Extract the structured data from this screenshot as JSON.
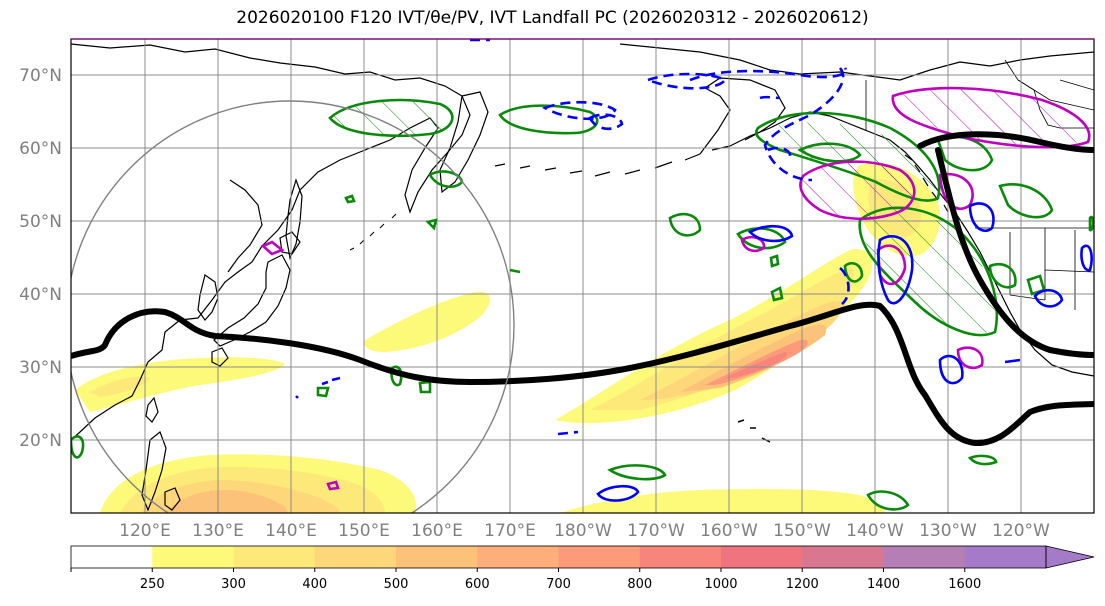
{
  "title": "2026020100 F120 IVT/θe/PV, IVT Landfall PC (2026020312 - 2026020612)",
  "latitude_labels": [
    "70°N",
    "60°N",
    "50°N",
    "40°N",
    "30°N",
    "20°N"
  ],
  "longitude_labels": [
    "120°E",
    "130°E",
    "140°E",
    "150°E",
    "160°E",
    "170°E",
    "180°W",
    "170°W",
    "160°W",
    "150°W",
    "140°W",
    "130°W",
    "120°W"
  ],
  "colorbar": {
    "ticks": [
      "250",
      "300",
      "400",
      "500",
      "600",
      "700",
      "800",
      "1000",
      "1200",
      "1400",
      "1600"
    ],
    "colors": [
      "#ffffff",
      "#fdfa7a",
      "#fde97a",
      "#fdd77a",
      "#fdc27a",
      "#fdae7a",
      "#fc9a7a",
      "#f8857b",
      "#ef7480",
      "#d97790",
      "#b57fb6",
      "#a57ac8"
    ]
  },
  "colors": {
    "coast": "#000000",
    "grid": "#8c8c8c",
    "jet": "#000000",
    "theta_e": "#0a8a0a",
    "pv_positive": "#c000c0",
    "pv_negative": "#0000ff",
    "circle": "#808080"
  }
}
